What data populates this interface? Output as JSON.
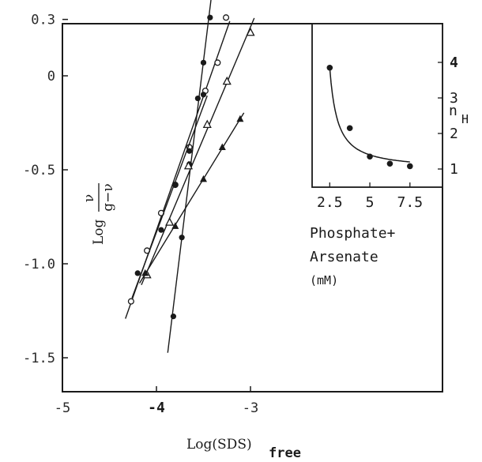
{
  "chart_data": [
    {
      "type": "line",
      "xlabel": "Log(SDS)",
      "xlabel_sub": "free",
      "ylabel": {
        "prefix": "Log",
        "numerator": "ν",
        "denominator": "g−ν"
      },
      "xlim": [
        -5,
        -2.55
      ],
      "ylim": [
        -1.7,
        0.3
      ],
      "xticks": [
        -5,
        -4,
        -3
      ],
      "xtick_labels": [
        "-5",
        "-4",
        "-3"
      ],
      "yticks": [
        0.3,
        0,
        -0.5,
        -1.0,
        -1.5
      ],
      "ytick_labels": [
        "0.3",
        "0",
        "-0.5",
        "-1.0",
        "-1.5"
      ],
      "grid": false,
      "series": [
        {
          "marker": "filled-circle",
          "x": [
            -3.82,
            -3.73,
            -3.65,
            -3.56,
            -3.5,
            -3.43
          ],
          "y": [
            -1.28,
            -0.86,
            -0.47,
            -0.12,
            0.07,
            0.31
          ]
        },
        {
          "marker": "open-circle",
          "x": [
            -4.27,
            -4.1,
            -3.95,
            -3.8,
            -3.65,
            -3.48,
            -3.35,
            -3.26
          ],
          "y": [
            -1.2,
            -0.93,
            -0.73,
            -0.58,
            -0.38,
            -0.08,
            0.07,
            0.31
          ]
        },
        {
          "marker": "open-triangle",
          "x": [
            -4.1,
            -3.86,
            -3.66,
            -3.46,
            -3.25,
            -3.0
          ],
          "y": [
            -1.06,
            -0.78,
            -0.48,
            -0.26,
            -0.03,
            0.23
          ]
        },
        {
          "marker": "filled-circle",
          "x": [
            -4.2,
            -3.95,
            -3.8,
            -3.65,
            -3.5
          ],
          "y": [
            -1.05,
            -0.82,
            -0.58,
            -0.4,
            -0.1
          ]
        },
        {
          "marker": "filled-triangle",
          "x": [
            -4.12,
            -3.8,
            -3.5,
            -3.3,
            -3.11
          ],
          "y": [
            -1.05,
            -0.8,
            -0.55,
            -0.38,
            -0.23
          ]
        }
      ]
    },
    {
      "type": "scatter",
      "xlabel": "Phosphate+ Arsenate (mM)",
      "xlabel_lines": [
        "Phosphate+",
        "Arsenate",
        "(mM)"
      ],
      "ylabel": "n",
      "ylabel_sub": "H",
      "xlim": [
        1.5,
        8.2
      ],
      "ylim": [
        0.5,
        4.7
      ],
      "xticks": [
        2.5,
        5,
        7.5
      ],
      "xtick_labels": [
        "2.5",
        "5",
        "7.5"
      ],
      "yticks": [
        1,
        2,
        3,
        4
      ],
      "ytick_labels": [
        "1",
        "2",
        "3",
        "4"
      ],
      "points": [
        {
          "x": 2.5,
          "y": 3.85
        },
        {
          "x": 3.75,
          "y": 2.15
        },
        {
          "x": 5.0,
          "y": 1.35
        },
        {
          "x": 6.25,
          "y": 1.15
        },
        {
          "x": 7.5,
          "y": 1.08
        }
      ]
    }
  ],
  "colors": {
    "ink": "#1a1a1a",
    "background": "#ffffff"
  }
}
